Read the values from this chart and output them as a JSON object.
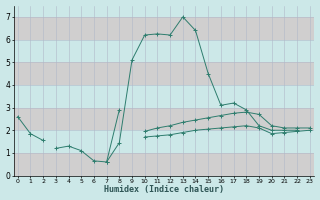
{
  "x": [
    0,
    1,
    2,
    3,
    4,
    5,
    6,
    7,
    8,
    9,
    10,
    11,
    12,
    13,
    14,
    15,
    16,
    17,
    18,
    19,
    20,
    21,
    22,
    23
  ],
  "line1": [
    2.6,
    1.85,
    null,
    1.2,
    1.3,
    1.1,
    0.65,
    0.6,
    2.9,
    null,
    null,
    null,
    null,
    null,
    null,
    null,
    null,
    null,
    null,
    null,
    null,
    null,
    null,
    null
  ],
  "line2": [
    null,
    null,
    null,
    null,
    null,
    null,
    null,
    0.6,
    1.45,
    5.1,
    6.2,
    6.25,
    6.2,
    7.0,
    6.4,
    4.5,
    3.1,
    3.2,
    2.9,
    2.2,
    2.0,
    2.0,
    2.0,
    null
  ],
  "line3": [
    null,
    1.85,
    1.55,
    null,
    null,
    null,
    null,
    null,
    null,
    null,
    1.95,
    2.1,
    2.2,
    2.35,
    2.45,
    2.55,
    2.65,
    2.75,
    2.8,
    2.7,
    2.2,
    2.1,
    2.1,
    2.1
  ],
  "line4": [
    null,
    null,
    null,
    null,
    null,
    null,
    null,
    null,
    null,
    null,
    1.7,
    1.75,
    1.8,
    1.9,
    2.0,
    2.05,
    2.1,
    2.15,
    2.2,
    2.1,
    1.85,
    1.9,
    1.95,
    2.0
  ],
  "line_color": "#2e7d6e",
  "bg_color": "#cce8e8",
  "grid_color_minor": "#c8c8d8",
  "grid_color_major": "#d4b8b8",
  "xlabel": "Humidex (Indice chaleur)",
  "ylim": [
    0,
    7.5
  ],
  "xlim": [
    -0.3,
    23.3
  ]
}
